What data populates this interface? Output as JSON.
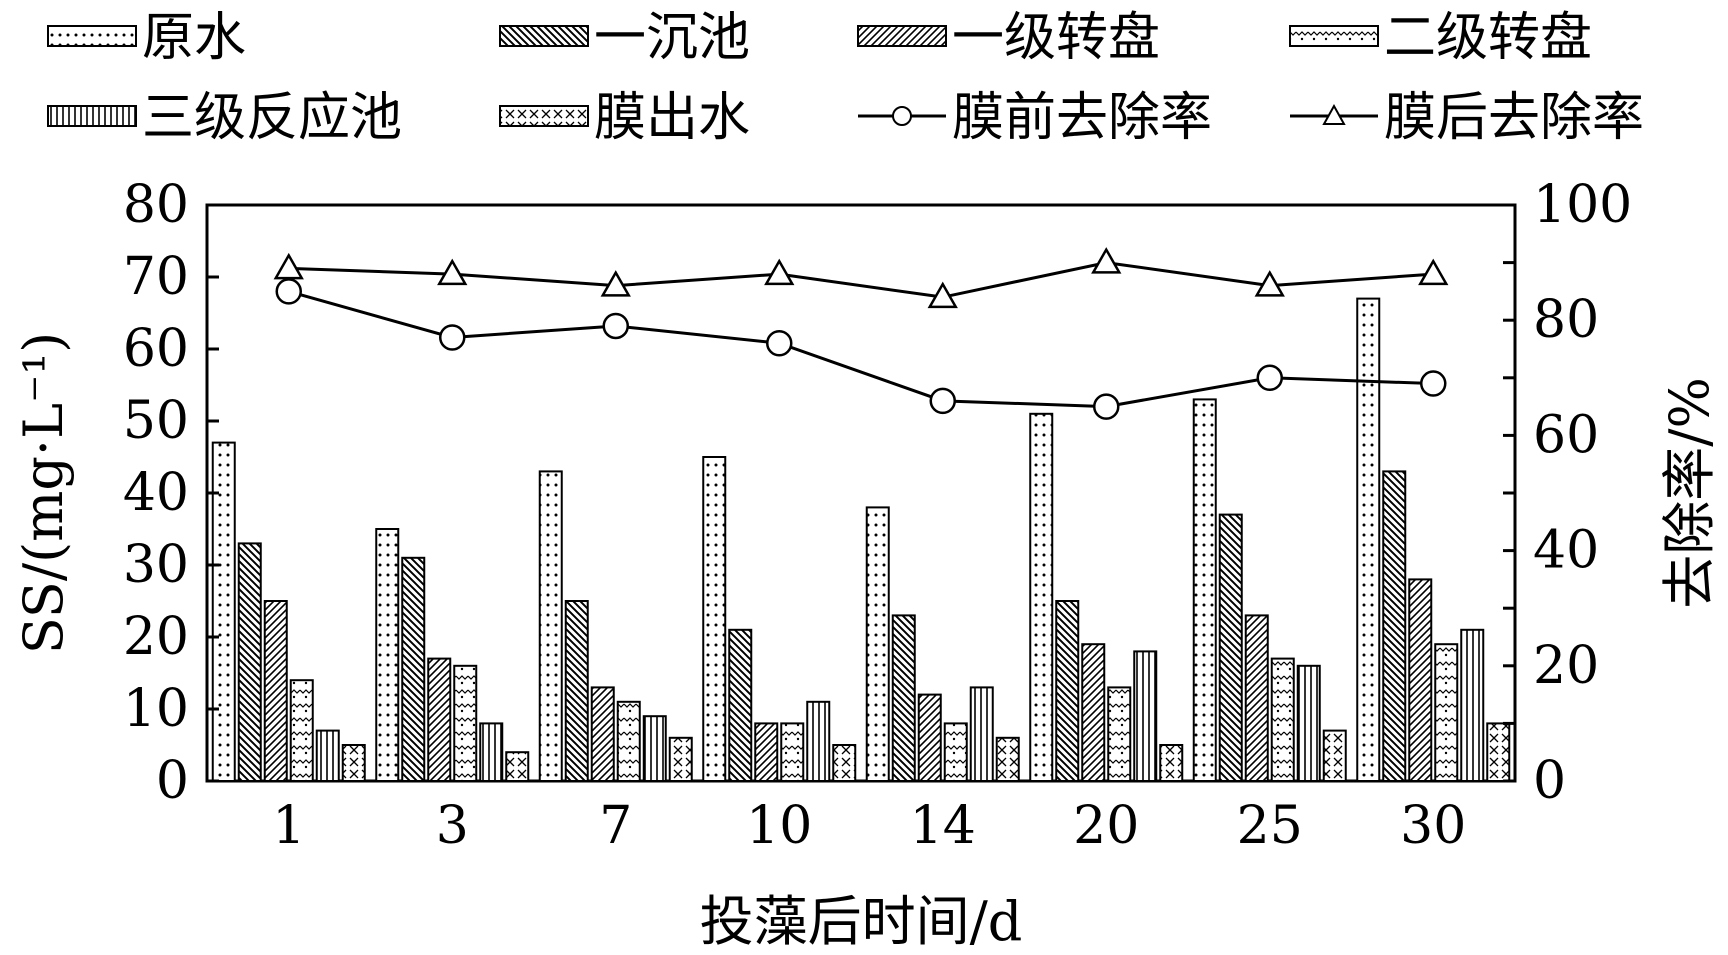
{
  "chart_data": {
    "type": "bar",
    "xlabel": "投藻后时间/d",
    "ylabel": "SS/(mg·L⁻¹)",
    "y2label": "去除率/%",
    "categories": [
      "1",
      "3",
      "7",
      "10",
      "14",
      "20",
      "25",
      "30"
    ],
    "ylim": [
      0,
      80
    ],
    "y2lim": [
      0,
      100
    ],
    "yticks": [
      "0",
      "10",
      "20",
      "30",
      "40",
      "50",
      "60",
      "70",
      "80"
    ],
    "y2ticks": [
      "0",
      "20",
      "40",
      "60",
      "80",
      "100"
    ],
    "legend_position": "top",
    "grid": false,
    "series": [
      {
        "name": "原水",
        "kind": "bar",
        "pattern": "dots",
        "values": [
          47,
          35,
          43,
          45,
          38,
          51,
          53,
          67
        ]
      },
      {
        "name": "一沉池",
        "kind": "bar",
        "pattern": "back-diag",
        "values": [
          33,
          31,
          25,
          21,
          23,
          25,
          37,
          43
        ]
      },
      {
        "name": "一级转盘",
        "kind": "bar",
        "pattern": "fwd-diag",
        "values": [
          25,
          17,
          13,
          8,
          12,
          19,
          23,
          28
        ]
      },
      {
        "name": "二级转盘",
        "kind": "bar",
        "pattern": "zigzag",
        "values": [
          14,
          16,
          11,
          8,
          8,
          13,
          17,
          19
        ]
      },
      {
        "name": "三级反应池",
        "kind": "bar",
        "pattern": "vlines",
        "values": [
          7,
          8,
          9,
          11,
          13,
          18,
          16,
          21
        ]
      },
      {
        "name": "膜出水",
        "kind": "bar",
        "pattern": "cross",
        "values": [
          5,
          4,
          6,
          5,
          6,
          5,
          7,
          8
        ]
      },
      {
        "name": "膜前去除率",
        "kind": "line",
        "axis": "right",
        "marker": "circle",
        "values": [
          85,
          77,
          79,
          76,
          66,
          65,
          70,
          69
        ]
      },
      {
        "name": "膜后去除率",
        "kind": "line",
        "axis": "right",
        "marker": "triangle",
        "values": [
          89,
          88,
          86,
          88,
          84,
          90,
          86,
          88
        ]
      }
    ]
  }
}
